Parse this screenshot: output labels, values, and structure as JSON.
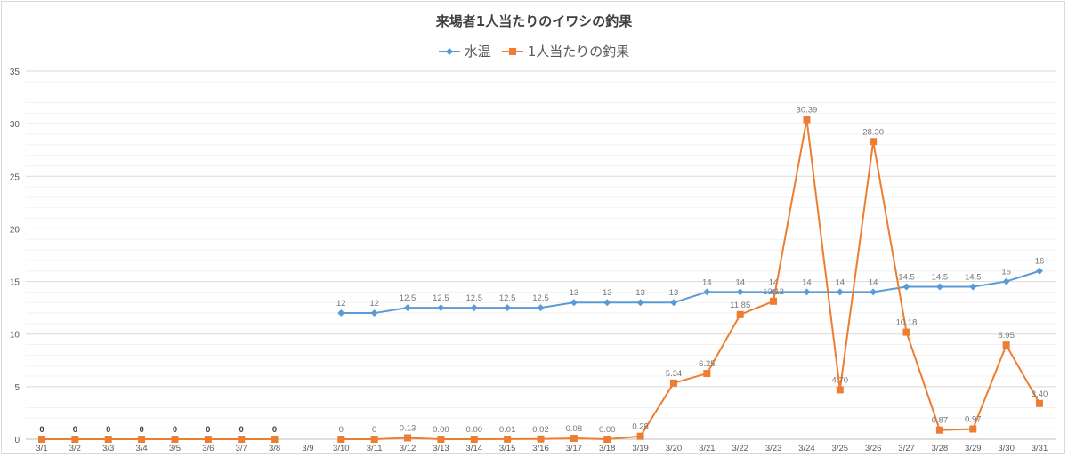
{
  "chart_data": {
    "type": "line",
    "title": "来場者1人当たりのイワシの釣果",
    "xlabel": "",
    "ylabel": "",
    "ylim": [
      0,
      35
    ],
    "yticks": [
      0,
      5,
      10,
      15,
      20,
      25,
      30,
      35
    ],
    "minor_grid_step": 1,
    "grid": true,
    "legend_position": "top",
    "categories": [
      "3/1",
      "3/2",
      "3/3",
      "3/4",
      "3/5",
      "3/6",
      "3/7",
      "3/8",
      "3/9",
      "3/10",
      "3/11",
      "3/12",
      "3/13",
      "3/14",
      "3/15",
      "3/16",
      "3/17",
      "3/18",
      "3/19",
      "3/20",
      "3/21",
      "3/22",
      "3/23",
      "3/24",
      "3/25",
      "3/26",
      "3/27",
      "3/28",
      "3/29",
      "3/30",
      "3/31"
    ],
    "series": [
      {
        "name": "水温",
        "color": "#5b9bd5",
        "marker": "diamond",
        "values": [
          null,
          null,
          null,
          null,
          null,
          null,
          null,
          null,
          null,
          12,
          12,
          12.5,
          12.5,
          12.5,
          12.5,
          12.5,
          13,
          13,
          13,
          13,
          14,
          14,
          14,
          14,
          14,
          14,
          14.5,
          14.5,
          14.5,
          15,
          16
        ],
        "labels": [
          null,
          null,
          null,
          null,
          null,
          null,
          null,
          null,
          null,
          "12",
          "12",
          "12.5",
          "12.5",
          "12.5",
          "12.5",
          "12.5",
          "13",
          "13",
          "13",
          "13",
          "14",
          "14",
          "14",
          "14",
          "14",
          "14",
          "14.5",
          "14.5",
          "14.5",
          "15",
          "16"
        ]
      },
      {
        "name": "1人当たりの釣果",
        "color": "#ed7d31",
        "marker": "square",
        "values": [
          0,
          0,
          0,
          0,
          0,
          0,
          0,
          0,
          null,
          0,
          0,
          0.13,
          0.0,
          0.0,
          0.01,
          0.02,
          0.08,
          0.0,
          0.28,
          5.34,
          6.25,
          11.85,
          13.12,
          30.39,
          4.7,
          28.3,
          10.18,
          0.87,
          0.97,
          8.95,
          3.4
        ],
        "labels": [
          "0",
          "0",
          "0",
          "0",
          "0",
          "0",
          "0",
          "0",
          null,
          "0",
          "0",
          "0.13",
          "0.00",
          "0.00",
          "0.01",
          "0.02",
          "0.08",
          "0.00",
          "0.28",
          "5.34",
          "6.25",
          "11.85",
          "13.12",
          "30.39",
          "4.70",
          "28.30",
          "10.18",
          "0.87",
          "0.97",
          "8.95",
          "3.40"
        ],
        "bold_labels_indices": [
          0,
          1,
          2,
          3,
          4,
          5,
          6,
          7
        ]
      }
    ]
  },
  "legend": {
    "items": [
      {
        "label": "水温",
        "color": "#5b9bd5"
      },
      {
        "label": "1人当たりの釣果",
        "color": "#ed7d31"
      }
    ]
  }
}
